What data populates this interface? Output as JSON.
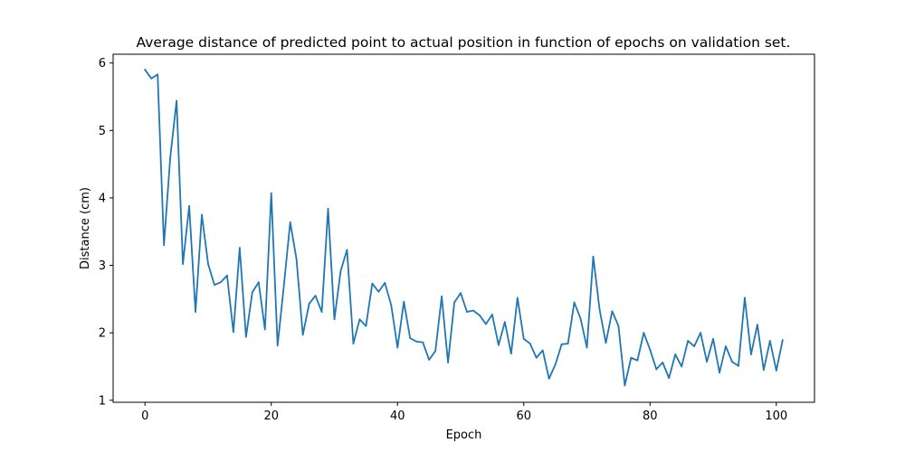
{
  "chart_data": {
    "type": "line",
    "title": "Average distance of predicted point to actual position in function of epochs on validation set.",
    "xlabel": "Epoch",
    "ylabel": "Distance (cm)",
    "xlim": [
      -5.05,
      106.05
    ],
    "ylim": [
      0.97,
      6.13
    ],
    "xticks": [
      0,
      20,
      40,
      60,
      80,
      100
    ],
    "yticks": [
      1,
      2,
      3,
      4,
      5,
      6
    ],
    "grid": false,
    "series": [
      {
        "color": "#1f77b4",
        "x": [
          0,
          1,
          2,
          3,
          4,
          5,
          6,
          7,
          8,
          9,
          10,
          11,
          12,
          13,
          14,
          15,
          16,
          17,
          18,
          19,
          20,
          21,
          22,
          23,
          24,
          25,
          26,
          27,
          28,
          29,
          30,
          31,
          32,
          33,
          34,
          35,
          36,
          37,
          38,
          39,
          40,
          41,
          42,
          43,
          44,
          45,
          46,
          47,
          48,
          49,
          50,
          51,
          52,
          53,
          54,
          55,
          56,
          57,
          58,
          59,
          60,
          61,
          62,
          63,
          64,
          65,
          66,
          67,
          68,
          69,
          70,
          71,
          72,
          73,
          74,
          75,
          76,
          77,
          78,
          79,
          80,
          81,
          82,
          83,
          84,
          85,
          86,
          87,
          88,
          89,
          90,
          91,
          92,
          93,
          94,
          95,
          96,
          97,
          98,
          99,
          100,
          101
        ],
        "y": [
          5.9,
          5.77,
          5.83,
          3.3,
          4.6,
          5.44,
          3.02,
          3.88,
          2.31,
          3.75,
          3.02,
          2.71,
          2.75,
          2.85,
          2.01,
          3.26,
          1.94,
          2.6,
          2.75,
          2.05,
          4.07,
          1.81,
          2.7,
          3.64,
          3.09,
          1.97,
          2.43,
          2.55,
          2.31,
          3.84,
          2.2,
          2.92,
          3.23,
          1.84,
          2.2,
          2.1,
          2.73,
          2.61,
          2.74,
          2.41,
          1.78,
          2.46,
          1.92,
          1.87,
          1.86,
          1.6,
          1.73,
          2.54,
          1.56,
          2.45,
          2.59,
          2.31,
          2.33,
          2.26,
          2.13,
          2.27,
          1.82,
          2.16,
          1.69,
          2.52,
          1.91,
          1.84,
          1.63,
          1.74,
          1.32,
          1.53,
          1.83,
          1.84,
          2.45,
          2.21,
          1.78,
          3.13,
          2.35,
          1.85,
          2.32,
          2.1,
          1.22,
          1.63,
          1.59,
          2.0,
          1.75,
          1.46,
          1.56,
          1.33,
          1.68,
          1.5,
          1.88,
          1.8,
          2.0,
          1.57,
          1.91,
          1.41,
          1.8,
          1.57,
          1.51,
          2.52,
          1.68,
          2.12,
          1.45,
          1.88,
          1.44,
          1.89
        ]
      }
    ]
  }
}
